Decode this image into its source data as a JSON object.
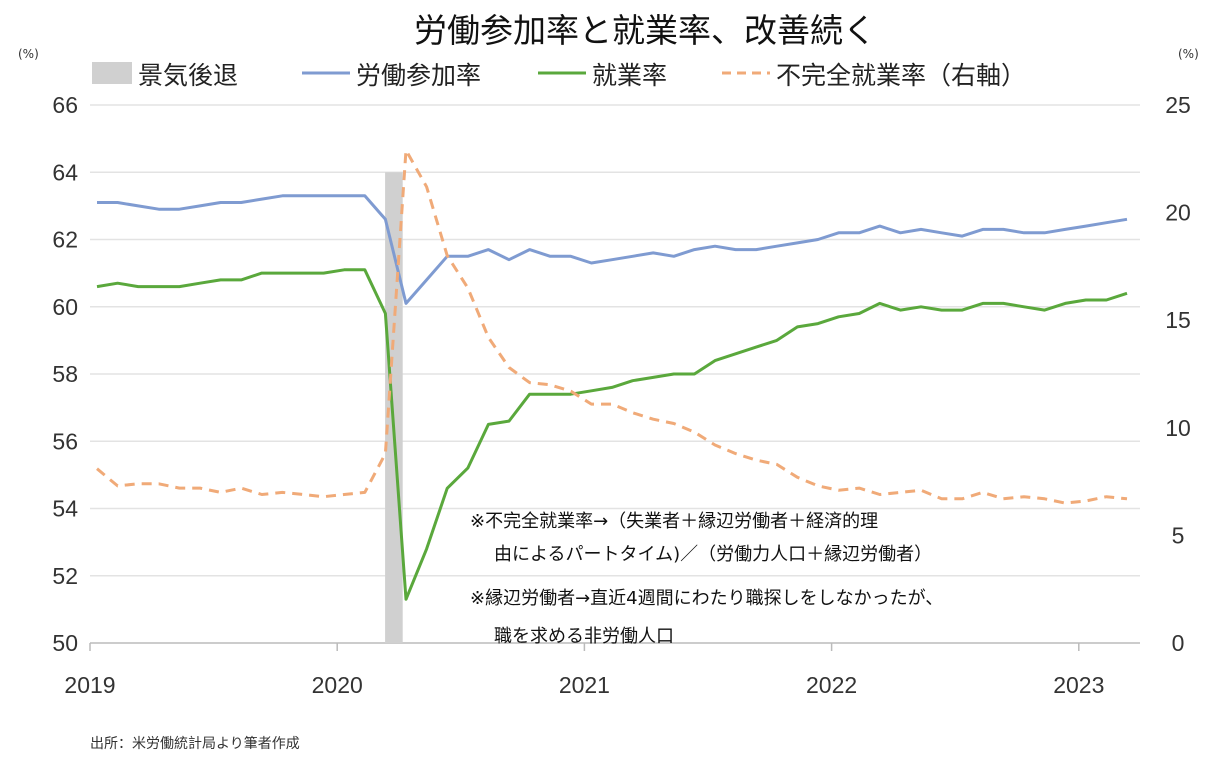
{
  "chart_data": {
    "type": "line",
    "title": "労働参加率と就業率、改善続く",
    "left_unit": "(%)",
    "right_unit": "(%)",
    "ylim_left": [
      50,
      66
    ],
    "yticks_left": [
      "50",
      "52",
      "54",
      "56",
      "58",
      "60",
      "62",
      "64",
      "66"
    ],
    "ylim_right": [
      0,
      25
    ],
    "yticks_right": [
      "0",
      "5",
      "10",
      "15",
      "20",
      "25"
    ],
    "xticks": [
      "2019",
      "2020",
      "2021",
      "2022",
      "2023"
    ],
    "x_start": "2019-01",
    "x_end": "2023-03",
    "grid": true,
    "legend_placement": "top",
    "recession": {
      "name": "景気後退",
      "start": "2020-03",
      "end": "2020-04",
      "color": "#d0d0d0"
    },
    "series": [
      {
        "name": "労働参加率",
        "axis": "left",
        "color": "#7f9bd1",
        "style": "solid",
        "values": [
          63.1,
          63.1,
          63.0,
          62.9,
          62.9,
          63.0,
          63.1,
          63.1,
          63.2,
          63.3,
          63.3,
          63.3,
          63.3,
          63.3,
          62.6,
          60.1,
          60.8,
          61.5,
          61.5,
          61.7,
          61.4,
          61.7,
          61.5,
          61.5,
          61.3,
          61.4,
          61.5,
          61.6,
          61.5,
          61.7,
          61.8,
          61.7,
          61.7,
          61.8,
          61.9,
          62.0,
          62.2,
          62.2,
          62.4,
          62.2,
          62.3,
          62.2,
          62.1,
          62.3,
          62.3,
          62.2,
          62.2,
          62.3,
          62.4,
          62.5,
          62.6
        ]
      },
      {
        "name": "就業率",
        "axis": "left",
        "color": "#5aa83c",
        "style": "solid",
        "values": [
          60.6,
          60.7,
          60.6,
          60.6,
          60.6,
          60.7,
          60.8,
          60.8,
          61.0,
          61.0,
          61.0,
          61.0,
          61.1,
          61.1,
          59.8,
          51.3,
          52.8,
          54.6,
          55.2,
          56.5,
          56.6,
          57.4,
          57.4,
          57.4,
          57.5,
          57.6,
          57.8,
          57.9,
          58.0,
          58.0,
          58.4,
          58.6,
          58.8,
          59.0,
          59.4,
          59.5,
          59.7,
          59.8,
          60.1,
          59.9,
          60.0,
          59.9,
          59.9,
          60.1,
          60.1,
          60.0,
          59.9,
          60.1,
          60.2,
          60.2,
          60.4
        ]
      },
      {
        "name": "不完全就業率（右軸）",
        "axis": "right",
        "color": "#f0aa78",
        "style": "dashed",
        "values": [
          8.1,
          7.3,
          7.4,
          7.4,
          7.2,
          7.2,
          7.0,
          7.2,
          6.9,
          7.0,
          6.9,
          6.8,
          6.9,
          7.0,
          8.8,
          22.9,
          21.2,
          18.0,
          16.5,
          14.2,
          12.8,
          12.1,
          12.0,
          11.7,
          11.1,
          11.1,
          10.7,
          10.4,
          10.2,
          9.8,
          9.2,
          8.8,
          8.5,
          8.3,
          7.7,
          7.3,
          7.1,
          7.2,
          6.9,
          7.0,
          7.1,
          6.7,
          6.7,
          7.0,
          6.7,
          6.8,
          6.7,
          6.5,
          6.6,
          6.8,
          6.7
        ]
      }
    ],
    "annotations": [
      "※不完全就業率→（失業者＋縁辺労働者＋経済的理",
      "由によるパートタイム)／（労働力人口＋縁辺労働者）",
      "※縁辺労働者→直近4週間にわたり職探しをしなかったが、",
      "職を求める非労働人口"
    ],
    "source": "出所：米労働統計局より筆者作成"
  }
}
